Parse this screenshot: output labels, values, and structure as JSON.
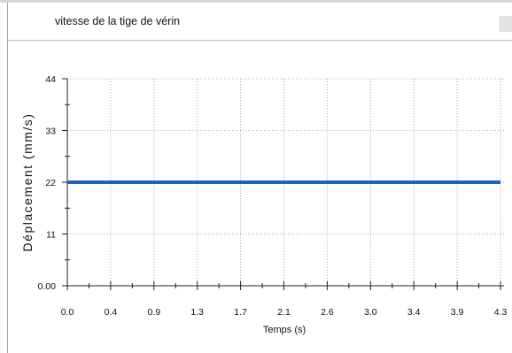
{
  "chart_data": {
    "type": "line",
    "title": "vitesse de la tige de vérin",
    "xlabel": "Temps (s)",
    "ylabel": "Déplacement (mm/s)",
    "xlim": [
      0.0,
      4.3
    ],
    "ylim": [
      0,
      44
    ],
    "x_ticks": [
      "0.0",
      "0.4",
      "0.9",
      "1.3",
      "1.7",
      "2.1",
      "2.6",
      "3.0",
      "3.4",
      "3.9",
      "4.3"
    ],
    "y_ticks": [
      "0.00",
      "11",
      "22",
      "33",
      "44"
    ],
    "grid": true,
    "legend": "none",
    "series": [
      {
        "x": [
          0.0,
          4.3
        ],
        "y": [
          22,
          22
        ],
        "color": "#1a63b8"
      }
    ]
  }
}
